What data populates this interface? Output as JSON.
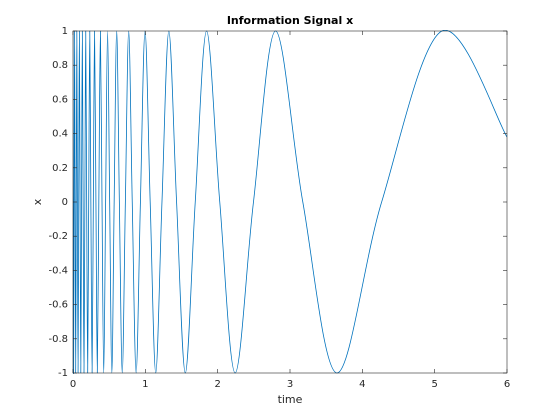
{
  "chart_data": {
    "type": "line",
    "title": "Information Signal x",
    "x_label": "time",
    "y_label": "x",
    "xlim": [
      0,
      6
    ],
    "ylim": [
      -1,
      1
    ],
    "xticks": [
      0,
      1,
      2,
      3,
      4,
      5,
      6
    ],
    "yticks": [
      -1,
      -0.8,
      -0.6,
      -0.4,
      -0.2,
      0,
      0.2,
      0.4,
      0.6,
      0.8,
      1
    ],
    "grid": false,
    "x": [
      0,
      0.008,
      0.015,
      0.022,
      0.029,
      0.037,
      0.045,
      0.053,
      0.061,
      0.07,
      0.079,
      0.088,
      0.098,
      0.108,
      0.118,
      0.129,
      0.14,
      0.152,
      0.164,
      0.176,
      0.189,
      0.203,
      0.217,
      0.232,
      0.247,
      0.264,
      0.281,
      0.298,
      0.317,
      0.336,
      0.357,
      0.379,
      0.401,
      0.425,
      0.451,
      0.478,
      0.507,
      0.537,
      0.569,
      0.604,
      0.641,
      0.681,
      0.724,
      0.77,
      0.819,
      0.873,
      0.932,
      0.996,
      1.067,
      1.144,
      1.23,
      1.325,
      1.432,
      1.553,
      1.69,
      1.847,
      2.029,
      2.242,
      2.495,
      2.801,
      3.177,
      3.651,
      4.267,
      5.1,
      6
    ],
    "series": [
      {
        "name": "x",
        "color": "#0072bd",
        "values": [
          1,
          -1,
          0,
          1,
          0,
          -1,
          0,
          1,
          0,
          -1,
          0,
          1,
          0,
          -1,
          0,
          1,
          0,
          -1,
          0,
          1,
          0,
          -1,
          0,
          1,
          0,
          -1,
          0,
          1,
          0,
          -1,
          0,
          1,
          0,
          -1,
          0,
          1,
          0,
          -1,
          0,
          1,
          0,
          -1,
          0,
          1,
          0,
          -1,
          0,
          1,
          0,
          -1,
          0,
          1,
          0,
          -1,
          0,
          1,
          0,
          -1,
          0,
          1,
          0,
          -1,
          0,
          1,
          0.38
        ]
      }
    ]
  }
}
